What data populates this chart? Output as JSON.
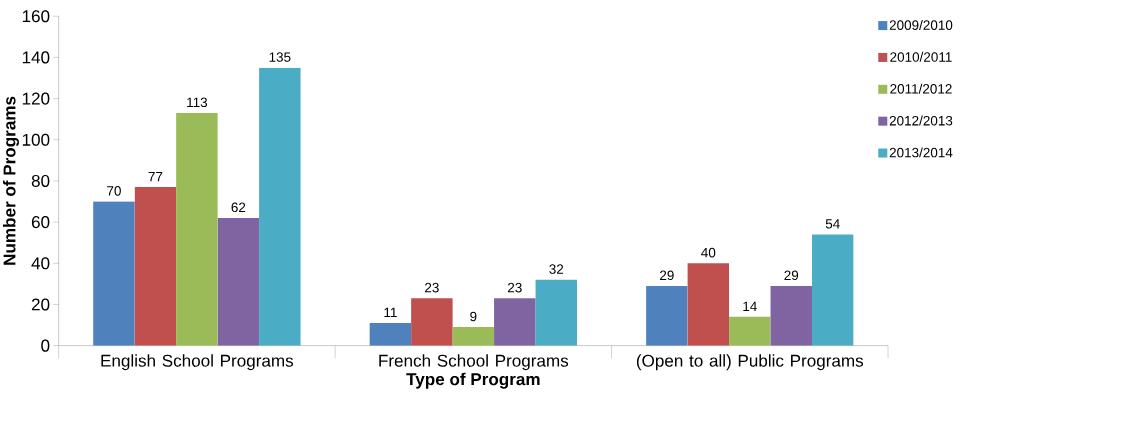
{
  "chart_data": {
    "type": "bar",
    "xlabel": "Type of Program",
    "ylabel": "Number of Programs",
    "categories": [
      "English School Programs",
      "French School Programs",
      "(Open to all) Public Programs"
    ],
    "series": [
      {
        "name": "2009/2010",
        "color": "#4f81bd",
        "values": [
          70,
          11,
          29
        ]
      },
      {
        "name": "2010/2011",
        "color": "#c0504d",
        "values": [
          77,
          23,
          40
        ]
      },
      {
        "name": "2011/2012",
        "color": "#9bbb59",
        "values": [
          113,
          9,
          14
        ]
      },
      {
        "name": "2012/2013",
        "color": "#8064a2",
        "values": [
          62,
          23,
          29
        ]
      },
      {
        "name": "2013/2014",
        "color": "#4bacc6",
        "values": [
          135,
          32,
          54
        ]
      }
    ],
    "ylim": [
      0,
      160
    ],
    "yticks": [
      0,
      20,
      40,
      60,
      80,
      100,
      120,
      140,
      160
    ],
    "data_labels": true,
    "legend": "right"
  }
}
